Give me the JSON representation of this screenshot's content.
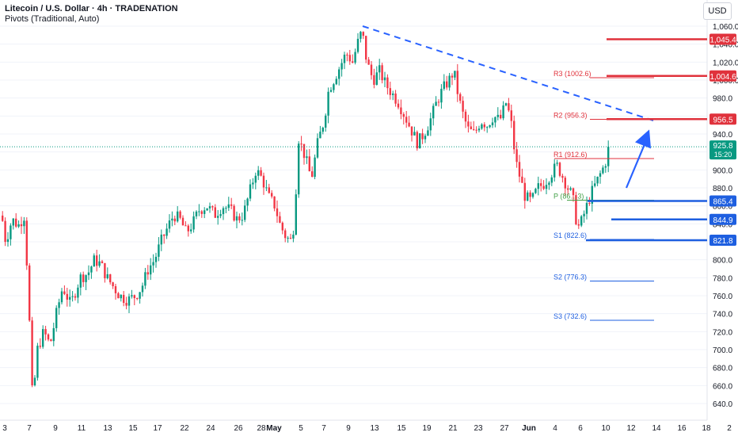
{
  "header": {
    "title": "Litecoin / U.S. Dollar · 4h · TRADENATION",
    "indicator": "Pivots (Traditional, Auto)",
    "currency": "USD"
  },
  "colors": {
    "up": "#089981",
    "down": "#f23645",
    "trend": "#2962ff",
    "resistance": "#e0323c",
    "support": "#1e5fe0",
    "pivot": "#43a047",
    "price": "#089981",
    "grid": "#f0f3fa"
  },
  "chart_data": {
    "type": "candlestick",
    "ylim": [
      632,
      1072
    ],
    "price_axis_ticks": [
      1060,
      1040,
      1020,
      1000,
      980,
      960,
      940,
      920,
      900,
      880,
      860,
      840,
      820,
      800,
      780,
      760,
      740,
      720,
      700,
      680,
      660,
      640
    ],
    "time_axis_ticks": [
      "3",
      "7",
      "9",
      "11",
      "13",
      "15",
      "17",
      "22",
      "24",
      "26",
      "28",
      "May",
      "5",
      "7",
      "9",
      "13",
      "15",
      "19",
      "21",
      "23",
      "27",
      "Jun",
      "4",
      "6",
      "10",
      "12",
      "14",
      "16",
      "18",
      "2"
    ],
    "current_price": {
      "value": 925.8,
      "label": "925.8",
      "countdown": "15:20"
    },
    "price_path": [
      [
        0,
        855
      ],
      [
        6,
        820
      ],
      [
        14,
        845
      ],
      [
        22,
        838
      ],
      [
        30,
        850
      ],
      [
        36,
        730
      ],
      [
        40,
        640
      ],
      [
        46,
        700
      ],
      [
        54,
        720
      ],
      [
        62,
        705
      ],
      [
        70,
        740
      ],
      [
        78,
        770
      ],
      [
        88,
        750
      ],
      [
        100,
        780
      ],
      [
        110,
        785
      ],
      [
        118,
        800
      ],
      [
        126,
        795
      ],
      [
        134,
        780
      ],
      [
        142,
        770
      ],
      [
        150,
        760
      ],
      [
        160,
        755
      ],
      [
        170,
        760
      ],
      [
        178,
        770
      ],
      [
        186,
        790
      ],
      [
        194,
        800
      ],
      [
        202,
        820
      ],
      [
        210,
        835
      ],
      [
        218,
        850
      ],
      [
        226,
        845
      ],
      [
        234,
        830
      ],
      [
        242,
        840
      ],
      [
        250,
        855
      ],
      [
        260,
        860
      ],
      [
        270,
        850
      ],
      [
        280,
        860
      ],
      [
        290,
        855
      ],
      [
        298,
        845
      ],
      [
        306,
        850
      ],
      [
        314,
        875
      ],
      [
        322,
        900
      ],
      [
        330,
        890
      ],
      [
        338,
        870
      ],
      [
        346,
        860
      ],
      [
        352,
        840
      ],
      [
        360,
        825
      ],
      [
        368,
        820
      ],
      [
        372,
        870
      ],
      [
        376,
        935
      ],
      [
        384,
        915
      ],
      [
        392,
        890
      ],
      [
        400,
        930
      ],
      [
        408,
        955
      ],
      [
        414,
        990
      ],
      [
        420,
        1000
      ],
      [
        428,
        1015
      ],
      [
        436,
        1030
      ],
      [
        444,
        1020
      ],
      [
        450,
        1040
      ],
      [
        456,
        1055
      ],
      [
        462,
        1020
      ],
      [
        470,
        1000
      ],
      [
        478,
        1010
      ],
      [
        486,
        995
      ],
      [
        494,
        985
      ],
      [
        502,
        975
      ],
      [
        510,
        960
      ],
      [
        518,
        945
      ],
      [
        526,
        930
      ],
      [
        534,
        940
      ],
      [
        542,
        955
      ],
      [
        550,
        975
      ],
      [
        558,
        990
      ],
      [
        566,
        1000
      ],
      [
        572,
        1010
      ],
      [
        578,
        980
      ],
      [
        584,
        960
      ],
      [
        590,
        945
      ],
      [
        598,
        940
      ],
      [
        606,
        955
      ],
      [
        614,
        950
      ],
      [
        622,
        960
      ],
      [
        630,
        955
      ],
      [
        638,
        975
      ],
      [
        644,
        955
      ],
      [
        650,
        910
      ],
      [
        656,
        890
      ],
      [
        662,
        870
      ],
      [
        670,
        865
      ],
      [
        678,
        880
      ],
      [
        686,
        885
      ],
      [
        694,
        895
      ],
      [
        702,
        905
      ],
      [
        708,
        895
      ],
      [
        716,
        880
      ],
      [
        722,
        870
      ],
      [
        728,
        835
      ],
      [
        732,
        840
      ],
      [
        738,
        855
      ],
      [
        746,
        875
      ],
      [
        754,
        890
      ],
      [
        762,
        905
      ],
      [
        770,
        925.8
      ]
    ],
    "trendline": [
      [
        458,
        1060
      ],
      [
        825,
        955
      ]
    ],
    "pivot_levels": [
      {
        "name": "R3",
        "label": "R3 (1002.6)",
        "value": 1002.6
      },
      {
        "name": "R2",
        "label": "R2 (956.3)",
        "value": 956.3
      },
      {
        "name": "R1",
        "label": "R1 (912.6)",
        "value": 912.6
      },
      {
        "name": "P",
        "label": "P (86…3)",
        "value": 866.3
      },
      {
        "name": "S1",
        "label": "S1 (822.6)",
        "value": 822.6
      },
      {
        "name": "S2",
        "label": "S2 (776.3)",
        "value": 776.3
      },
      {
        "name": "S3",
        "label": "S3 (732.6)",
        "value": 732.6
      }
    ],
    "key_levels": [
      {
        "label": "1,045.4",
        "value": 1045.4,
        "kind": "resistance"
      },
      {
        "label": "1,004.6",
        "value": 1004.6,
        "kind": "resistance"
      },
      {
        "label": "956.5",
        "value": 956.5,
        "kind": "resistance"
      },
      {
        "label": "865.4",
        "value": 865.4,
        "kind": "support"
      },
      {
        "label": "844.9",
        "value": 844.9,
        "kind": "support"
      },
      {
        "label": "821.8",
        "value": 821.8,
        "kind": "support"
      }
    ],
    "arrow": {
      "from": 880,
      "to": 945
    }
  }
}
